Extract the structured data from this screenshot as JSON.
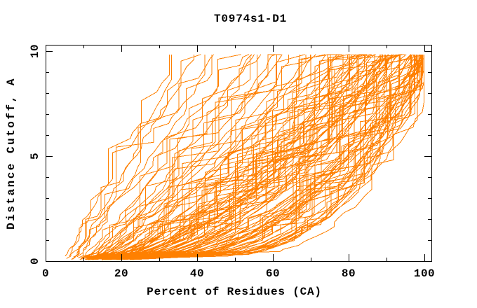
{
  "chart_data": {
    "type": "line",
    "title": "T0974s1-D1",
    "xlabel": "Percent of Residues (CA)",
    "ylabel": "Distance Cutoff, A",
    "xlim": [
      0,
      102
    ],
    "ylim": [
      0,
      10.3
    ],
    "x_major_ticks": [
      0,
      20,
      40,
      60,
      80,
      100
    ],
    "x_minor_ticks": [
      10,
      30,
      50,
      70,
      90
    ],
    "y_major_ticks": [
      0,
      5,
      10
    ],
    "y_minor_ticks": [
      1,
      2,
      3,
      4,
      6,
      7,
      8,
      9
    ],
    "grid": false,
    "legend": "none",
    "curve_color": "#FF8000",
    "axis_color": "#000000",
    "background_color": "#FFFFFF",
    "curve_top_y": 9.84,
    "models_count": 118,
    "note": "CASP GDT-style plot: each orange stepped curve is one predicted model; curves give percent of CA residues (x) under a distance cutoff (y). Curves read from image as [percent_at_cutoff_0, percent_at_cutoff_10, shape_exponent]; fitted percents above 100 are clamped at 100 (curves hugging right edge).",
    "curves": [
      [
        6,
        36,
        1.1
      ],
      [
        5,
        38,
        1.05
      ],
      [
        7,
        40,
        1.0
      ],
      [
        8,
        42,
        1.15
      ],
      [
        6,
        45,
        0.95
      ],
      [
        9,
        47,
        1.1
      ],
      [
        7,
        49,
        1.0
      ],
      [
        10,
        52,
        0.9
      ],
      [
        8,
        54,
        1.05
      ],
      [
        11,
        55,
        0.85
      ],
      [
        9,
        56,
        0.95
      ],
      [
        12,
        58,
        0.85
      ],
      [
        10,
        60,
        0.9
      ],
      [
        14,
        61,
        0.8
      ],
      [
        11,
        63,
        0.75
      ],
      [
        13,
        64,
        0.9
      ],
      [
        9,
        65,
        0.85
      ],
      [
        15,
        66,
        0.7
      ],
      [
        12,
        68,
        0.8
      ],
      [
        10,
        69,
        0.9
      ],
      [
        16,
        70,
        0.75
      ],
      [
        13,
        71,
        0.85
      ],
      [
        11,
        72,
        0.7
      ],
      [
        14,
        73,
        0.8
      ],
      [
        12,
        74,
        0.75
      ],
      [
        15,
        75,
        0.65
      ],
      [
        10,
        76,
        0.85
      ],
      [
        13,
        77,
        0.7
      ],
      [
        16,
        78,
        0.75
      ],
      [
        11,
        78,
        0.8
      ],
      [
        14,
        79,
        0.65
      ],
      [
        12,
        80,
        0.7
      ],
      [
        15,
        80,
        0.75
      ],
      [
        13,
        81,
        0.65
      ],
      [
        16,
        82,
        0.7
      ],
      [
        10,
        82,
        0.62
      ],
      [
        13,
        83,
        0.55
      ],
      [
        16,
        83,
        0.6
      ],
      [
        11,
        84,
        0.5
      ],
      [
        14,
        84,
        0.65
      ],
      [
        18,
        85,
        0.52
      ],
      [
        12,
        85,
        0.58
      ],
      [
        15,
        86,
        0.48
      ],
      [
        19,
        86,
        0.6
      ],
      [
        10,
        87,
        0.55
      ],
      [
        13,
        87,
        0.62
      ],
      [
        16,
        88,
        0.5
      ],
      [
        11,
        88,
        0.57
      ],
      [
        14,
        89,
        0.52
      ],
      [
        17,
        89,
        0.6
      ],
      [
        20,
        90,
        0.47
      ],
      [
        12,
        90,
        0.55
      ],
      [
        15,
        91,
        0.5
      ],
      [
        18,
        91,
        0.58
      ],
      [
        11,
        92,
        0.52
      ],
      [
        14,
        92,
        0.6
      ],
      [
        16,
        93,
        0.46
      ],
      [
        13,
        93,
        0.55
      ],
      [
        19,
        94,
        0.5
      ],
      [
        12,
        94,
        0.58
      ],
      [
        15,
        95,
        0.45
      ],
      [
        17,
        95,
        0.52
      ],
      [
        14,
        96,
        0.48
      ],
      [
        20,
        96,
        0.55
      ],
      [
        13,
        97,
        0.5
      ],
      [
        16,
        97,
        0.44
      ],
      [
        18,
        84,
        0.68
      ],
      [
        12,
        86,
        0.66
      ],
      [
        15,
        88,
        0.63
      ],
      [
        17,
        91,
        0.62
      ],
      [
        19,
        93,
        0.64
      ],
      [
        21,
        95,
        0.58
      ],
      [
        11,
        90,
        0.65
      ],
      [
        14,
        94,
        0.6
      ],
      [
        16,
        96,
        0.57
      ],
      [
        22,
        97,
        0.42
      ],
      [
        12,
        89,
        0.45
      ],
      [
        18,
        92,
        0.48
      ],
      [
        20,
        94,
        0.44
      ],
      [
        15,
        93,
        0.42
      ],
      [
        14,
        98,
        0.4
      ],
      [
        17,
        98,
        0.45
      ],
      [
        20,
        98,
        0.38
      ],
      [
        13,
        99,
        0.42
      ],
      [
        16,
        99,
        0.36
      ],
      [
        19,
        99,
        0.45
      ],
      [
        22,
        99,
        0.4
      ],
      [
        15,
        100,
        0.38
      ],
      [
        18,
        100,
        0.42
      ],
      [
        21,
        100,
        0.35
      ],
      [
        24,
        100,
        0.45
      ],
      [
        14,
        101,
        0.4
      ],
      [
        17,
        101,
        0.36
      ],
      [
        20,
        101,
        0.32
      ],
      [
        23,
        101,
        0.42
      ],
      [
        16,
        102,
        0.38
      ],
      [
        19,
        102,
        0.34
      ],
      [
        22,
        102,
        0.3
      ],
      [
        15,
        102,
        0.4
      ],
      [
        18,
        103,
        0.36
      ],
      [
        21,
        103,
        0.32
      ],
      [
        25,
        103,
        0.4
      ],
      [
        17,
        104,
        0.35
      ],
      [
        20,
        104,
        0.3
      ],
      [
        14,
        104,
        0.38
      ],
      [
        23,
        105,
        0.33
      ],
      [
        16,
        105,
        0.28
      ],
      [
        19,
        105,
        0.36
      ],
      [
        22,
        106,
        0.3
      ],
      [
        18,
        106,
        0.34
      ],
      [
        25,
        106,
        0.26
      ],
      [
        20,
        107,
        0.3
      ],
      [
        15,
        99,
        0.25
      ],
      [
        17,
        100,
        0.24
      ],
      [
        21,
        101,
        0.26
      ],
      [
        19,
        98,
        0.28
      ],
      [
        23,
        100,
        0.27
      ],
      [
        16,
        103,
        0.25
      ]
    ]
  }
}
